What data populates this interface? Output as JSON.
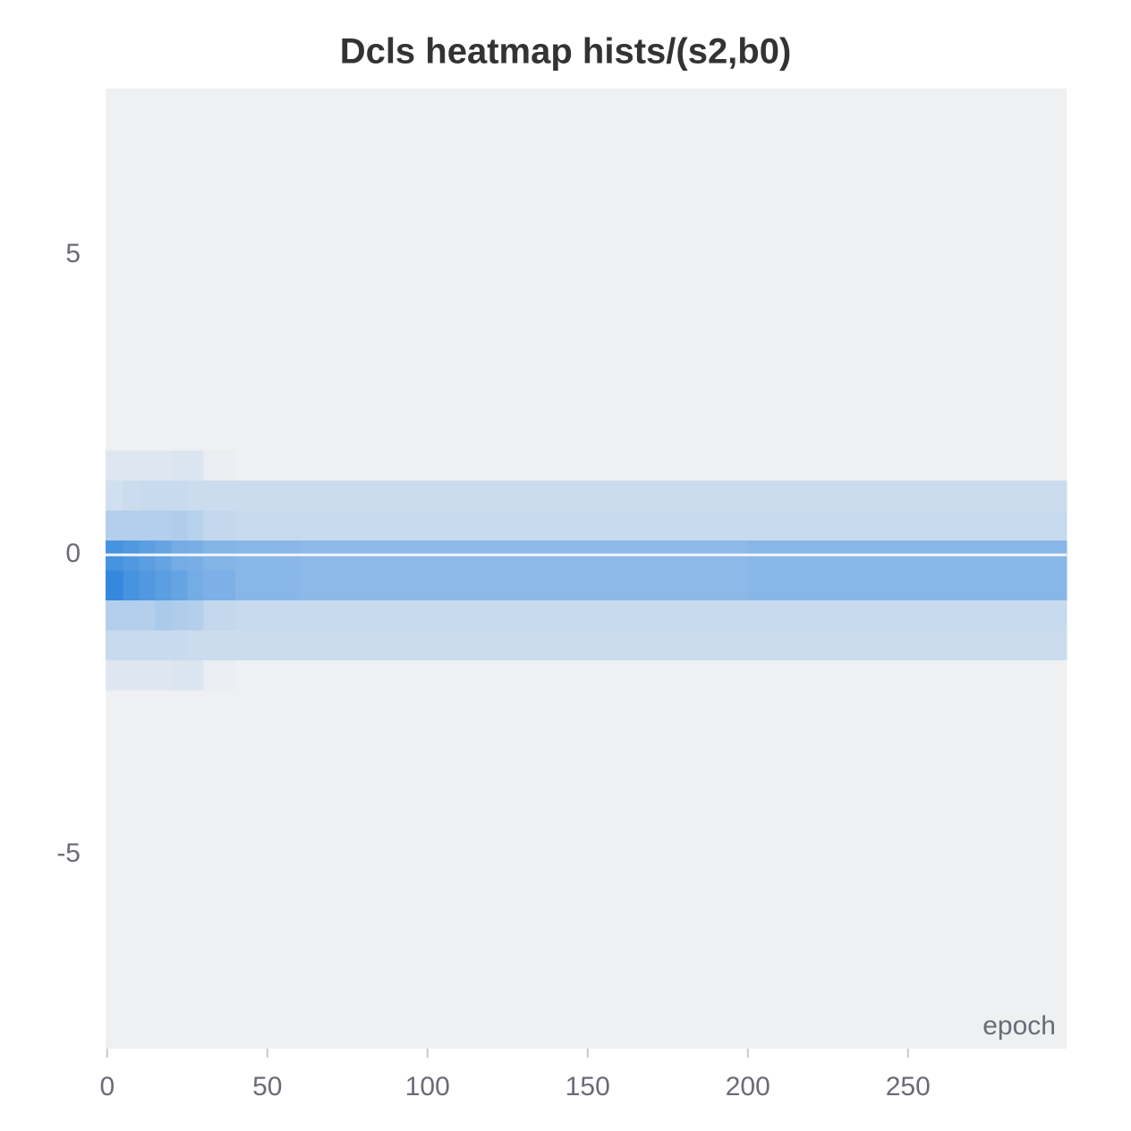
{
  "chart_data": {
    "type": "heatmap",
    "title": "Dcls heatmap hists/(s2,b0)",
    "x_label": "epoch",
    "x_bins": [
      -0.5,
      5,
      10,
      15,
      20,
      25,
      30,
      40,
      60,
      100,
      200,
      299.5
    ],
    "y_bins": [
      -2.26,
      -1.76,
      -1.26,
      -0.76,
      -0.26,
      0.24,
      0.74,
      1.24,
      1.74
    ],
    "values": [
      [
        0.08,
        0.08,
        0.08,
        0.08,
        0.1,
        0.1,
        0.02,
        0,
        0,
        0,
        0
      ],
      [
        0.2,
        0.2,
        0.2,
        0.2,
        0.2,
        0.18,
        0.18,
        0.18,
        0.18,
        0.18,
        0.18
      ],
      [
        0.3,
        0.3,
        0.3,
        0.35,
        0.32,
        0.3,
        0.22,
        0.2,
        0.2,
        0.2,
        0.2
      ],
      [
        0.95,
        0.85,
        0.8,
        0.75,
        0.7,
        0.62,
        0.58,
        0.52,
        0.5,
        0.5,
        0.52
      ],
      [
        0.85,
        0.8,
        0.75,
        0.7,
        0.62,
        0.6,
        0.55,
        0.52,
        0.5,
        0.5,
        0.52
      ],
      [
        0.3,
        0.3,
        0.3,
        0.3,
        0.32,
        0.28,
        0.22,
        0.2,
        0.2,
        0.2,
        0.2
      ],
      [
        0.15,
        0.18,
        0.2,
        0.2,
        0.2,
        0.18,
        0.18,
        0.18,
        0.18,
        0.18,
        0.18
      ],
      [
        0.08,
        0.08,
        0.08,
        0.08,
        0.1,
        0.1,
        0.02,
        0,
        0,
        0,
        0
      ]
    ],
    "colorscale": [
      "#eef0f2",
      "#2a82dd"
    ],
    "xlim": [
      -0.5,
      299.5
    ],
    "ylim": [
      -8.24,
      7.78
    ],
    "xticks": [
      0,
      50,
      100,
      150,
      200,
      250
    ],
    "yticks": [
      -5,
      0,
      5
    ]
  }
}
